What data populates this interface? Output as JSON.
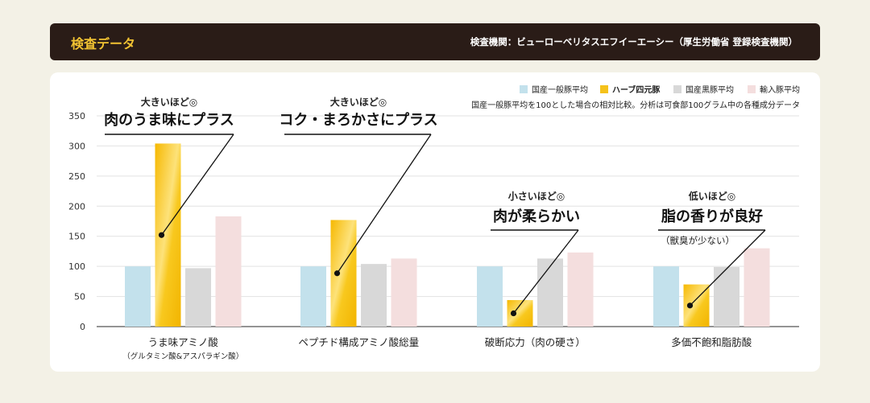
{
  "header": {
    "title": "検査データ",
    "org": "検査機関：ビューローベリタスエフイーエーシー（厚生労働省 登録検査機関）"
  },
  "note": "国産一般豚平均を100とした場合の相対比較。分析は可食部100グラム中の各種成分データ",
  "annotations": [
    {
      "small": "大きいほど◎",
      "big": "肉のうま味にプラス",
      "sub": ""
    },
    {
      "small": "大きいほど◎",
      "big": "コク・まろかさにプラス",
      "sub": ""
    },
    {
      "small": "小さいほど◎",
      "big": "肉が柔らかい",
      "sub": ""
    },
    {
      "small": "低いほど◎",
      "big": "脂の香りが良好",
      "sub": "（獣臭が少ない）"
    }
  ],
  "colors": {
    "header_bg": "#2a1c17",
    "accent": "#f1c232",
    "series": [
      "#c3e1ec",
      "#f5c21b",
      "#d8d8d8",
      "#f4dede"
    ]
  },
  "chart_data": {
    "type": "bar",
    "title": "",
    "xlabel": "",
    "ylabel": "",
    "ylim": [
      0,
      350
    ],
    "yticks": [
      0,
      50,
      100,
      150,
      200,
      250,
      300,
      350
    ],
    "grid": true,
    "legend_position": "top-right",
    "categories": [
      "うま味アミノ酸（グルタミン酸&アスパラギン酸）",
      "ペプチド構成アミノ酸総量",
      "破断応力（肉の硬さ）",
      "多価不飽和脂肪酸"
    ],
    "category_labels": [
      {
        "main": "うま味アミノ酸",
        "sub": "（グルタミン酸&アスパラギン酸）"
      },
      {
        "main": "ペプチド構成アミノ酸総量",
        "sub": ""
      },
      {
        "main": "破断応力（肉の硬さ）",
        "sub": ""
      },
      {
        "main": "多価不飽和脂肪酸",
        "sub": ""
      }
    ],
    "series": [
      {
        "name": "国産一般豚平均",
        "values": [
          100,
          100,
          100,
          100
        ]
      },
      {
        "name": "ハーブ四元豚",
        "values": [
          304,
          177,
          44,
          70
        ]
      },
      {
        "name": "国産黒豚平均",
        "values": [
          97,
          104,
          113,
          99
        ]
      },
      {
        "name": "輸入豚平均",
        "values": [
          183,
          113,
          123,
          130
        ]
      }
    ]
  }
}
